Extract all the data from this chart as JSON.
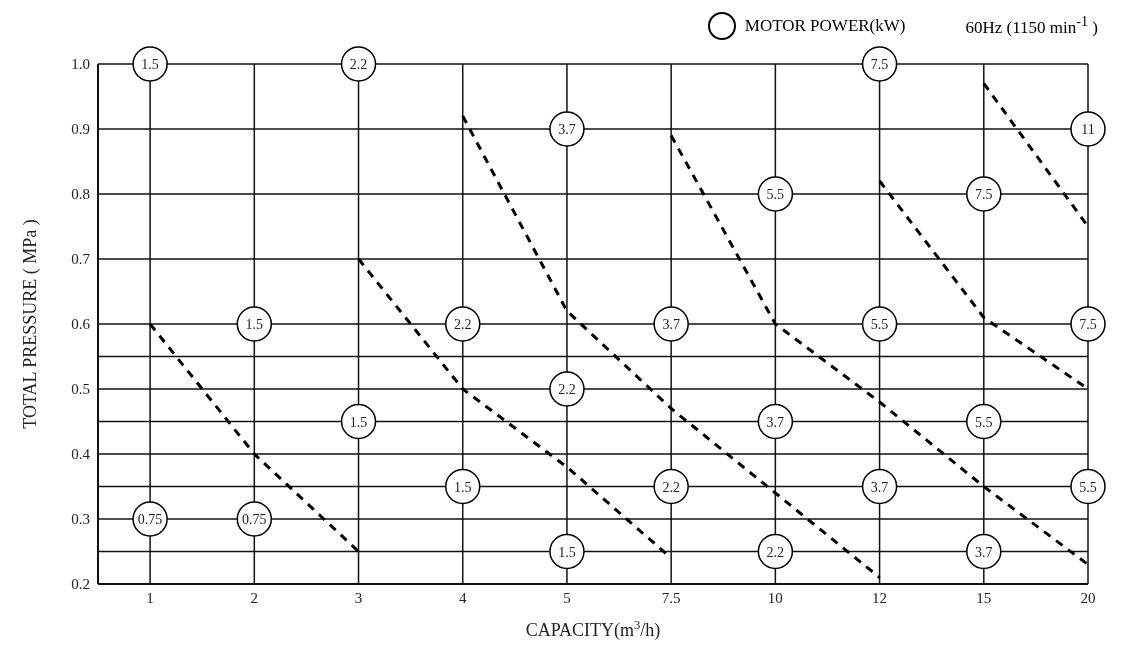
{
  "chart_data": {
    "type": "scatter",
    "xlabel": "CAPACITY(m$^{3}$/h)",
    "ylabel": "TOTAL PRESSURE ( MPa )",
    "subtitle": "60Hz (1150 min$^{-1}$ )",
    "categories": [
      "1",
      "2",
      "3",
      "4",
      "5",
      "7.5",
      "10",
      "12",
      "15",
      "20"
    ],
    "ylim": [
      0.2,
      1.0
    ],
    "yticks": [
      0.2,
      {
        "value": 0.25,
        "label": null
      },
      0.3,
      {
        "value": 0.35,
        "label": null
      },
      0.4,
      {
        "value": 0.45,
        "label": null
      },
      0.5,
      {
        "value": 0.55,
        "label": null
      },
      0.6,
      0.7,
      0.8,
      0.9,
      {
        "value": 1,
        "label": "1.0"
      }
    ],
    "grid": true,
    "legend": "top",
    "line_style": "dashed",
    "series": [
      {
        "name": "MOTOR POWER(kW)",
        "marker": "circle",
        "color": "#000000",
        "x": [
          "1",
          "1",
          "2",
          "2",
          "3",
          "3",
          "4",
          "4",
          "5",
          "5",
          "5",
          "7.5",
          "7.5",
          "10",
          "10",
          "10",
          "12",
          "12",
          "12",
          "15",
          "15",
          "15",
          "20",
          "20",
          "20"
        ],
        "values": [
          1.0,
          0.3,
          0.6,
          0.3,
          1.0,
          0.45,
          0.6,
          0.35,
          0.9,
          0.5,
          0.25,
          0.6,
          0.35,
          0.8,
          0.45,
          0.25,
          1.0,
          0.6,
          0.35,
          0.8,
          0.45,
          0.25,
          0.9,
          0.6,
          0.35
        ]
      },
      {
        "type": "line",
        "marker": "none",
        "color": "#000000",
        "values": [
          0.6,
          0.4,
          0.25,
          null,
          null,
          null,
          null,
          null,
          null,
          null
        ]
      },
      {
        "type": "line",
        "marker": "none",
        "color": "#000000",
        "values": [
          null,
          null,
          0.7,
          0.5,
          0.38,
          0.24,
          null,
          null,
          null,
          null
        ]
      },
      {
        "type": "line",
        "marker": "none",
        "color": "#000000",
        "values": [
          null,
          null,
          null,
          0.92,
          0.62,
          0.47,
          0.34,
          0.21,
          null,
          null
        ]
      },
      {
        "type": "line",
        "marker": "none",
        "color": "#000000",
        "values": [
          null,
          null,
          null,
          null,
          null,
          0.89,
          0.6,
          0.48,
          0.35,
          0.23
        ]
      },
      {
        "type": "line",
        "marker": "none",
        "color": "#000000",
        "values": [
          null,
          null,
          null,
          null,
          null,
          null,
          null,
          0.82,
          0.61,
          0.5
        ]
      },
      {
        "type": "line",
        "marker": "none",
        "color": "#000000",
        "values": [
          null,
          null,
          null,
          null,
          null,
          null,
          null,
          null,
          0.97,
          0.75
        ]
      }
    ],
    "annotations": [
      {
        "text": "1.5",
        "x": "1",
        "y": 1.0
      },
      {
        "text": "0.75",
        "x": "1",
        "y": 0.3
      },
      {
        "text": "1.5",
        "x": "2",
        "y": 0.6
      },
      {
        "text": "0.75",
        "x": "2",
        "y": 0.3
      },
      {
        "text": "2.2",
        "x": "3",
        "y": 1.0
      },
      {
        "text": "1.5",
        "x": "3",
        "y": 0.45
      },
      {
        "text": "2.2",
        "x": "4",
        "y": 0.6
      },
      {
        "text": "1.5",
        "x": "4",
        "y": 0.35
      },
      {
        "text": "3.7",
        "x": "5",
        "y": 0.9
      },
      {
        "text": "2.2",
        "x": "5",
        "y": 0.5
      },
      {
        "text": "1.5",
        "x": "5",
        "y": 0.25
      },
      {
        "text": "3.7",
        "x": "7.5",
        "y": 0.6
      },
      {
        "text": "2.2",
        "x": "7.5",
        "y": 0.35
      },
      {
        "text": "5.5",
        "x": "10",
        "y": 0.8
      },
      {
        "text": "3.7",
        "x": "10",
        "y": 0.45
      },
      {
        "text": "2.2",
        "x": "10",
        "y": 0.25
      },
      {
        "text": "7.5",
        "x": "12",
        "y": 1.0
      },
      {
        "text": "5.5",
        "x": "12",
        "y": 0.6
      },
      {
        "text": "3.7",
        "x": "12",
        "y": 0.35
      },
      {
        "text": "7.5",
        "x": "15",
        "y": 0.8
      },
      {
        "text": "5.5",
        "x": "15",
        "y": 0.45
      },
      {
        "text": "3.7",
        "x": "15",
        "y": 0.25
      },
      {
        "text": "11",
        "x": "20",
        "y": 0.9
      },
      {
        "text": "7.5",
        "x": "20",
        "y": 0.6
      },
      {
        "text": "5.5",
        "x": "20",
        "y": 0.35
      }
    ]
  }
}
